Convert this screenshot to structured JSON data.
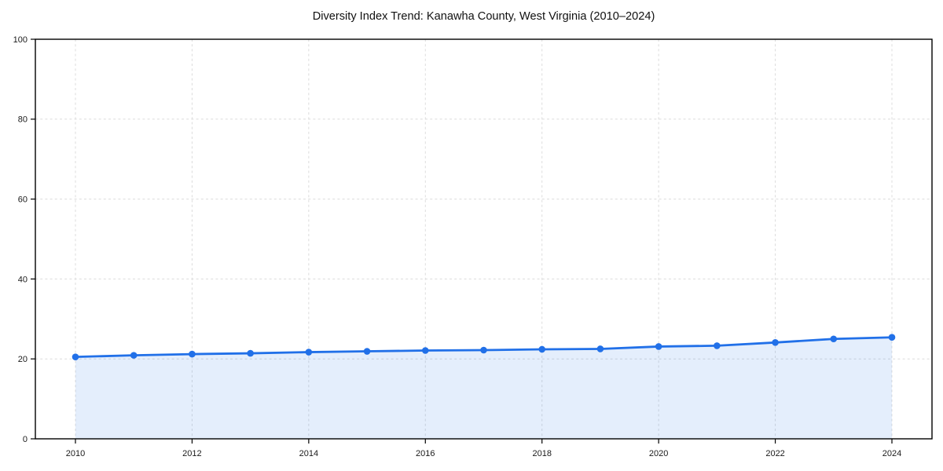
{
  "figure": {
    "background": "#ffffff"
  },
  "chart_data": {
    "type": "line",
    "title": "Diversity Index Trend: Kanawha County, West Virginia (2010–2024)",
    "x": [
      2010,
      2011,
      2012,
      2013,
      2014,
      2015,
      2016,
      2017,
      2018,
      2019,
      2020,
      2021,
      2022,
      2023,
      2024
    ],
    "series": [
      {
        "name": "Diversity Index",
        "values": [
          20.5,
          20.9,
          21.2,
          21.4,
          21.7,
          21.9,
          22.1,
          22.2,
          22.4,
          22.5,
          23.1,
          23.3,
          24.1,
          25.0,
          25.4
        ]
      }
    ],
    "xlabel": "",
    "ylabel": "",
    "xlim": [
      2010,
      2024
    ],
    "ylim": [
      0,
      100
    ],
    "xticks": [
      2010,
      2012,
      2014,
      2016,
      2018,
      2020,
      2022,
      2024
    ],
    "yticks": [
      0,
      20,
      40,
      60,
      80,
      100
    ],
    "grid": true,
    "grid_style": "dashed",
    "legend_position": "none",
    "colors": {
      "line": "#2170e8",
      "marker": "#2170e8",
      "area_fill": "#2170e8",
      "area_fill_opacity": 0.12,
      "gridline": "#dcdcdc",
      "frame": "#000000",
      "tick_label": "#1a1a1a",
      "title": "#111111"
    }
  }
}
